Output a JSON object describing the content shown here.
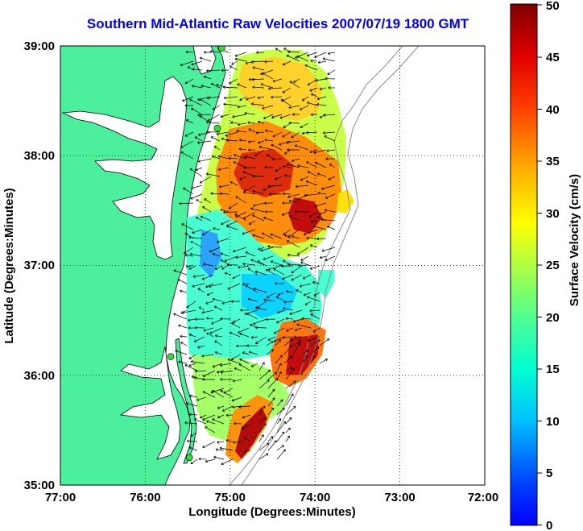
{
  "title": "Southern Mid-Atlantic Raw Velocities 2007/07/19 1800 GMT",
  "map": {
    "xlabel": "Longitude (Degrees:Minutes)",
    "ylabel": "Latitude (Degrees:Minutes)",
    "x_ticks": [
      "77:00",
      "76:00",
      "75:00",
      "74:00",
      "73:00",
      "72:00"
    ],
    "y_ticks": [
      "39:00",
      "38:00",
      "37:00",
      "36:00",
      "35:00"
    ],
    "lon_range": [
      -77,
      -72
    ],
    "lat_range": [
      35,
      39
    ],
    "grid": "dotted",
    "land_color": "#4cf09c",
    "coast_color": "#000000",
    "contour_color": "#8c8c8c",
    "station_color": "#33dd33",
    "arrow_color": "#000000"
  },
  "colorbar": {
    "label": "Surface Velocity (cm/s)",
    "ticks": [
      "0",
      "5",
      "10",
      "15",
      "20",
      "25",
      "30",
      "35",
      "40",
      "45",
      "50"
    ],
    "range": [
      0,
      50
    ],
    "colormap": "jet"
  },
  "stations": [
    {
      "lon": -75.1,
      "lat": 38.98
    },
    {
      "lon": -75.15,
      "lat": 38.25
    },
    {
      "lon": -75.7,
      "lat": 36.17
    },
    {
      "lon": -75.48,
      "lat": 35.25
    }
  ]
}
